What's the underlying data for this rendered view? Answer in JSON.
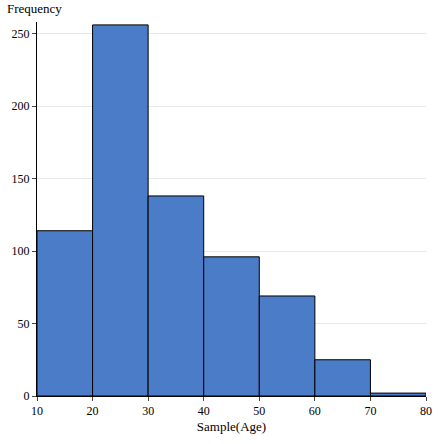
{
  "chart_data": {
    "type": "histogram",
    "x_label": "Sample(Age)",
    "y_label": "Frequency",
    "bins": [
      10,
      20,
      30,
      40,
      50,
      60,
      70,
      80
    ],
    "values": [
      114,
      256,
      138,
      96,
      69,
      25,
      2
    ],
    "color": "#4a7cc7",
    "xlim": [
      10,
      80
    ],
    "xticks": [
      10,
      20,
      30,
      40,
      50,
      60,
      70,
      80
    ],
    "ylim": [
      0,
      258
    ],
    "yticks": [
      0,
      50,
      100,
      150,
      200,
      250
    ],
    "grid": true
  }
}
